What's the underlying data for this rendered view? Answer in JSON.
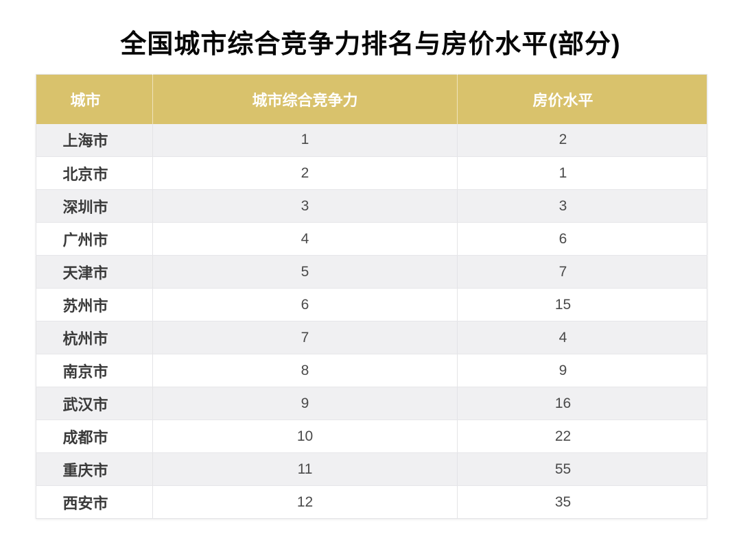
{
  "title": "全国城市综合竞争力排名与房价水平(部分)",
  "chart_data": {
    "type": "table",
    "title": "全国城市综合竞争力排名与房价水平(部分)",
    "columns": [
      "城市",
      "城市综合竞争力",
      "房价水平"
    ],
    "rows": [
      {
        "city": "上海市",
        "competitiveness": 1,
        "housing_price": 2
      },
      {
        "city": "北京市",
        "competitiveness": 2,
        "housing_price": 1
      },
      {
        "city": "深圳市",
        "competitiveness": 3,
        "housing_price": 3
      },
      {
        "city": "广州市",
        "competitiveness": 4,
        "housing_price": 6
      },
      {
        "city": "天津市",
        "competitiveness": 5,
        "housing_price": 7
      },
      {
        "city": "苏州市",
        "competitiveness": 6,
        "housing_price": 15
      },
      {
        "city": "杭州市",
        "competitiveness": 7,
        "housing_price": 4
      },
      {
        "city": "南京市",
        "competitiveness": 8,
        "housing_price": 9
      },
      {
        "city": "武汉市",
        "competitiveness": 9,
        "housing_price": 16
      },
      {
        "city": "成都市",
        "competitiveness": 10,
        "housing_price": 22
      },
      {
        "city": "重庆市",
        "competitiveness": 11,
        "housing_price": 55
      },
      {
        "city": "西安市",
        "competitiveness": 12,
        "housing_price": 35
      }
    ],
    "layout": {
      "striped_rows": true,
      "header_position": "top",
      "text_align": "center"
    }
  },
  "colors": {
    "header_bg": "#D9C26C",
    "header_text": "#FFFFFF",
    "alt_row_bg": "#F0F0F2",
    "row_bg": "#FFFFFF",
    "body_text": "#4A4A4A",
    "city_text": "#3A3A3A",
    "title_text": "#060606",
    "grid_line": "#E3E3E6"
  }
}
